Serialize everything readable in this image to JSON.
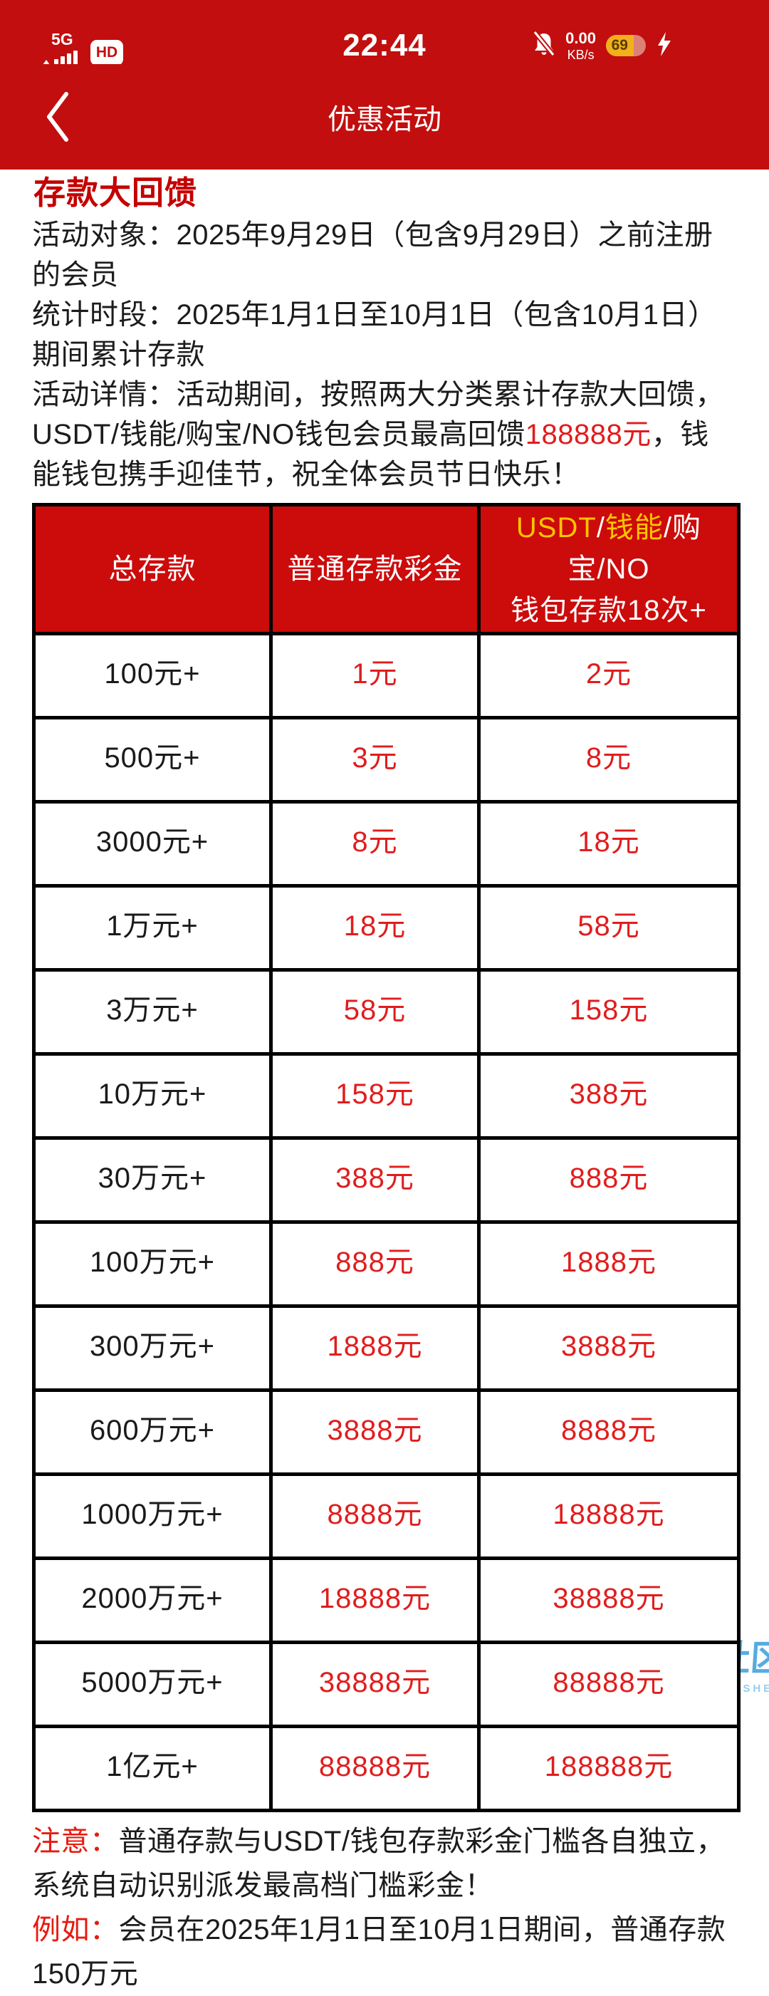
{
  "status_bar": {
    "network_label": "5G",
    "hd_badge": "HD",
    "time": "22:44",
    "net_speed_value": "0.00",
    "net_speed_unit": "KB/s",
    "battery_percent": "69"
  },
  "nav_bar": {
    "title": "优惠活动"
  },
  "promo": {
    "heading": "存款大回馈",
    "audience": "活动对象：2025年9月29日（包含9月29日）之前注册的会员",
    "period": "统计时段：2025年1月1日至10月1日（包含10月1日）期间累计存款",
    "details": {
      "before": "活动详情：活动期间，按照两大分类累计存款大回馈，USDT/钱能/购宝/NO钱包会员最高回馈",
      "highlight": "188888元",
      "after": "，钱能钱包携手迎佳节，祝全体会员节日快乐！"
    }
  },
  "table": {
    "header": {
      "col1": "总存款",
      "col2": "普通存款彩金",
      "col3_line1_parts": [
        {
          "text": "USDT",
          "color": "#ffc400"
        },
        {
          "text": "/",
          "color": "#ffffff"
        },
        {
          "text": "钱能",
          "color": "#ffc400"
        },
        {
          "text": "/购宝/NO",
          "color": "#ffffff"
        }
      ],
      "col3_line2": "钱包存款18次+"
    },
    "rows": [
      {
        "tier": "100元+",
        "normal": "1元",
        "wallet": "2元"
      },
      {
        "tier": "500元+",
        "normal": "3元",
        "wallet": "8元"
      },
      {
        "tier": "3000元+",
        "normal": "8元",
        "wallet": "18元"
      },
      {
        "tier": "1万元+",
        "normal": "18元",
        "wallet": "58元"
      },
      {
        "tier": "3万元+",
        "normal": "58元",
        "wallet": "158元"
      },
      {
        "tier": "10万元+",
        "normal": "158元",
        "wallet": "388元"
      },
      {
        "tier": "30万元+",
        "normal": "388元",
        "wallet": "888元"
      },
      {
        "tier": "100万元+",
        "normal": "888元",
        "wallet": "1888元"
      },
      {
        "tier": "300万元+",
        "normal": "1888元",
        "wallet": "3888元"
      },
      {
        "tier": "600万元+",
        "normal": "3888元",
        "wallet": "8888元"
      },
      {
        "tier": "1000万元+",
        "normal": "8888元",
        "wallet": "18888元"
      },
      {
        "tier": "2000万元+",
        "normal": "18888元",
        "wallet": "38888元"
      },
      {
        "tier": "5000万元+",
        "normal": "38888元",
        "wallet": "88888元"
      },
      {
        "tier": "1亿元+",
        "normal": "88888元",
        "wallet": "188888元"
      }
    ]
  },
  "notes": {
    "note1_label": "注意：",
    "note1_text": "普通存款与USDT/钱包存款彩金门槛各自独立，系统自动识别派发最高档门槛彩金！",
    "note2_label": "例如：",
    "note2_text": "会员在2025年1月1日至10月1日期间，普通存款150万元"
  },
  "watermark": {
    "title": "老哥社区",
    "subtitle": "LAOGESHEQU"
  },
  "colors": {
    "bar_red": "#c20e0e",
    "table_header_red": "#cc0b0b",
    "heading_red": "#c40000",
    "value_red": "#e01d1d",
    "note_label_red": "#e71a0f",
    "header_gold": "#ffc400",
    "battery_yellow": "#f3b01d",
    "watermark_blue": "#47a5e0"
  }
}
